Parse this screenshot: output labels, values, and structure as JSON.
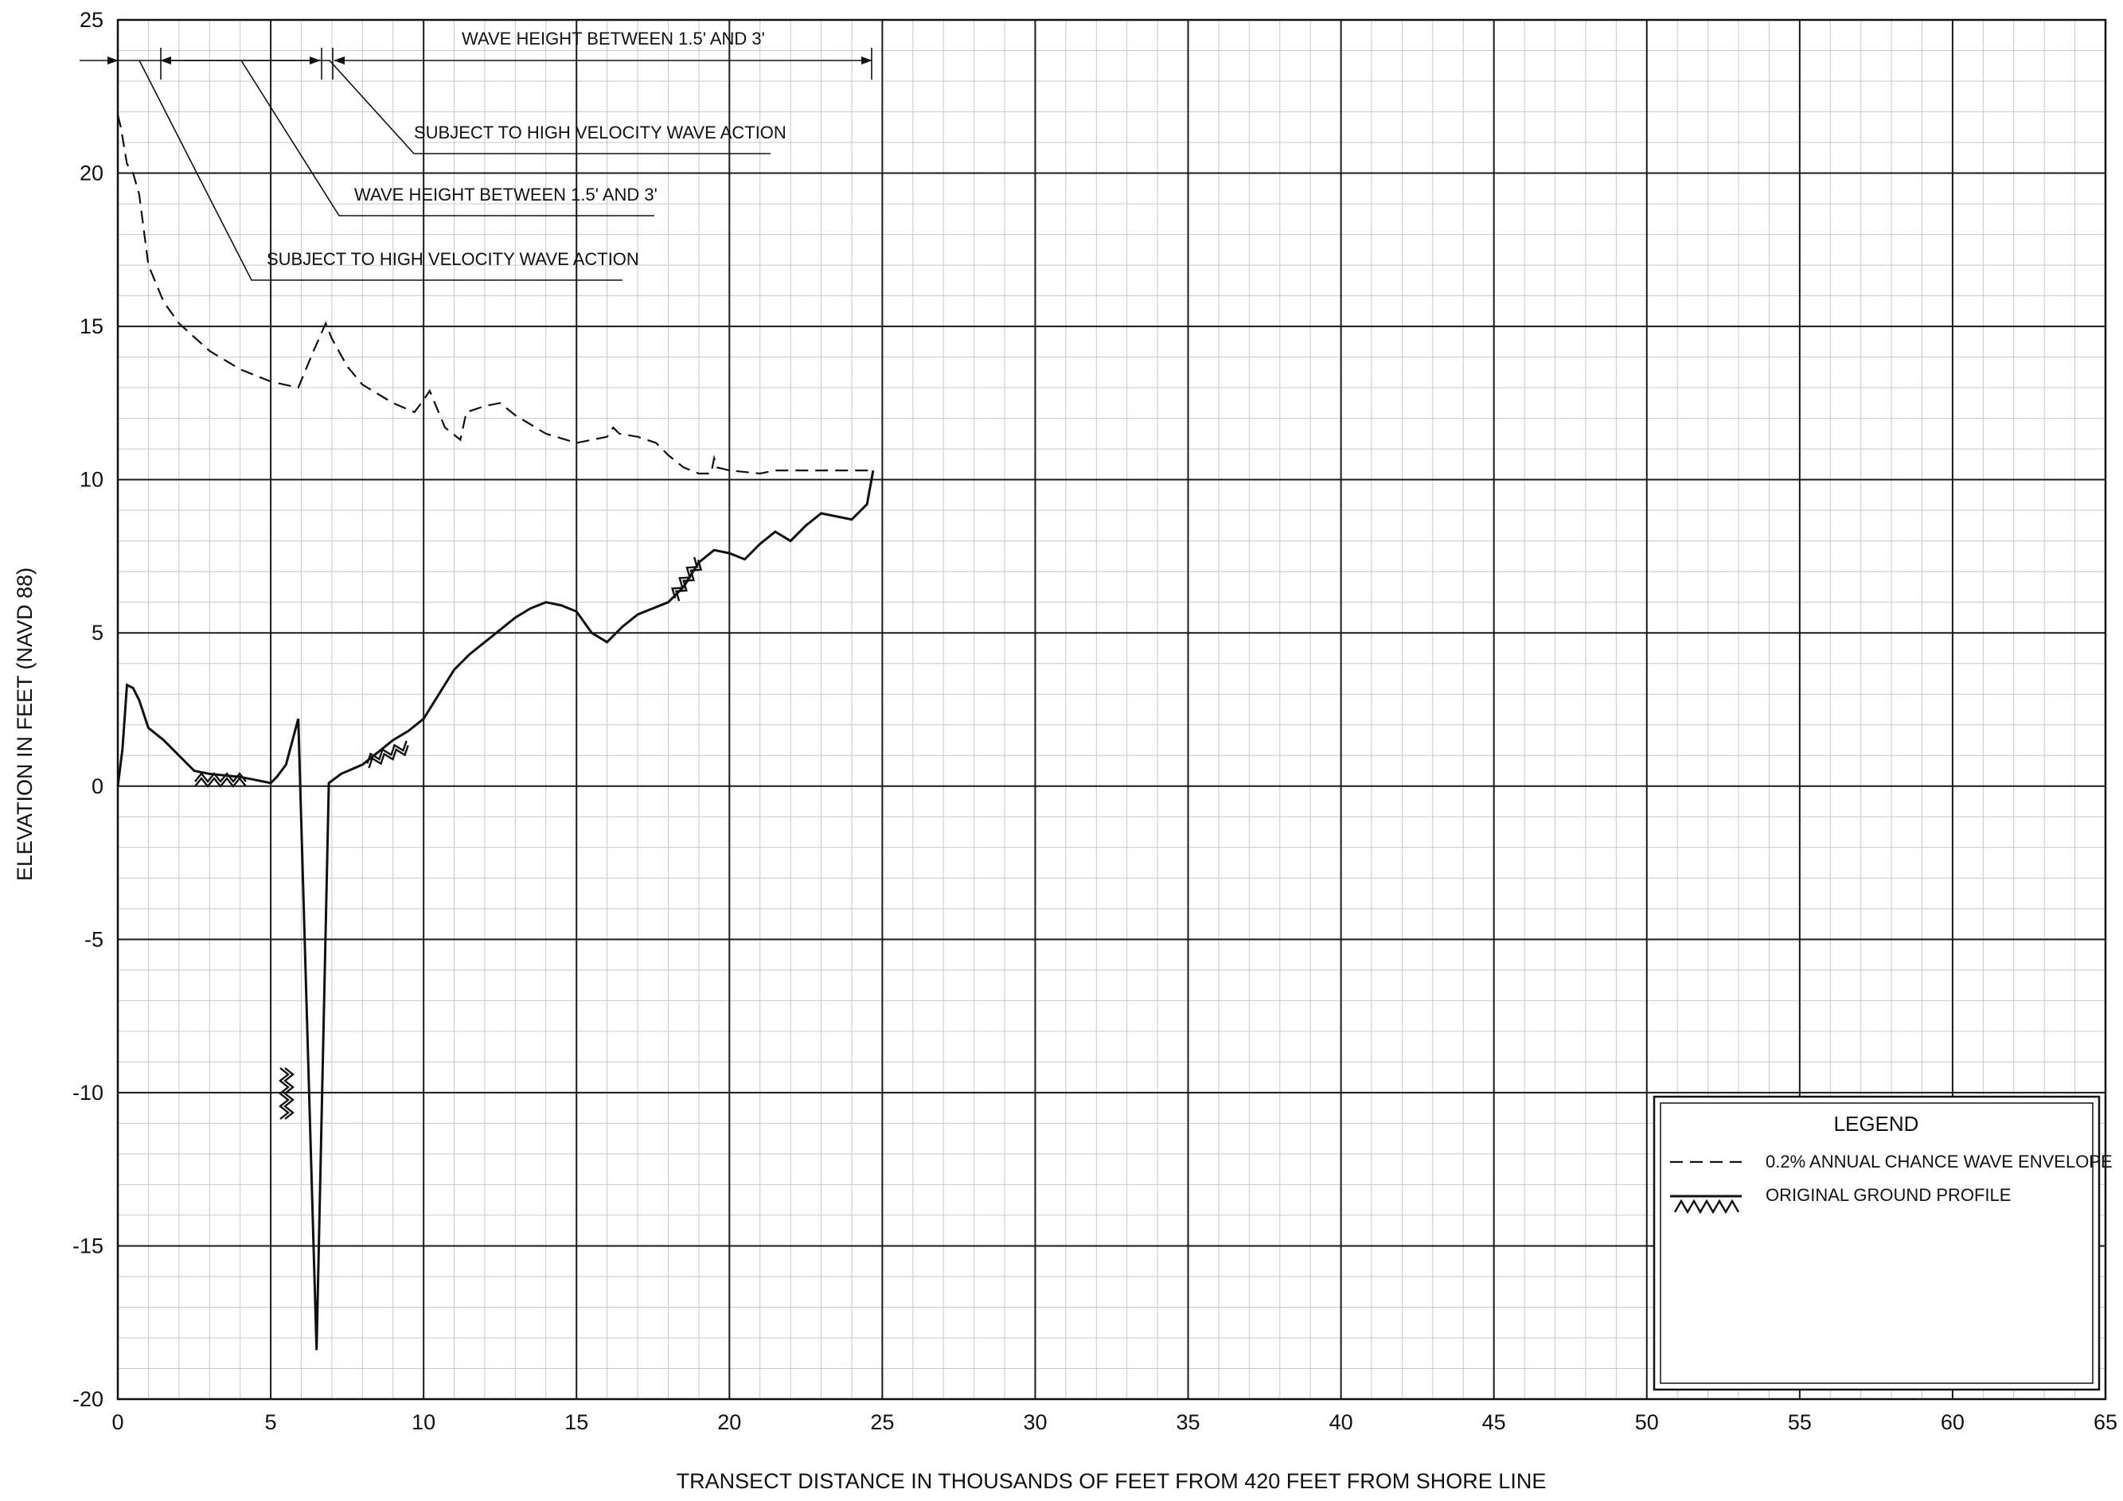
{
  "chart_data": {
    "type": "line",
    "xlabel": "TRANSECT DISTANCE IN THOUSANDS OF FEET FROM 420 FEET FROM SHORE LINE",
    "ylabel": "ELEVATION IN FEET (NAVD 88)",
    "xlim": [
      0,
      65
    ],
    "ylim": [
      -20,
      25
    ],
    "x_ticks": [
      "0",
      "5",
      "10",
      "15",
      "20",
      "25",
      "30",
      "35",
      "40",
      "45",
      "50",
      "55",
      "60",
      "65"
    ],
    "y_ticks": [
      "25",
      "20",
      "15",
      "10",
      "5",
      "0",
      "-5",
      "-10",
      "-15",
      "-20"
    ],
    "grid": {
      "major": true,
      "minor": true,
      "minor_step": 1
    },
    "annotations": [
      {
        "text": "WAVE HEIGHT BETWEEN 1.5' AND 3'",
        "x_from": 7.1,
        "x_to": 24.7
      },
      {
        "text": "SUBJECT TO HIGH VELOCITY WAVE ACTION",
        "x_from": 7.0,
        "x_to": 7.0
      },
      {
        "text": "WAVE HEIGHT BETWEEN 1.5' AND 3'",
        "x_from": 1.4,
        "x_to": 6.6
      },
      {
        "text": "SUBJECT TO HIGH VELOCITY WAVE ACTION",
        "x_from": 0,
        "x_to": 1.4
      }
    ],
    "legend": {
      "title": "LEGEND",
      "placement": "bottom-right",
      "entries": [
        "0.2% ANNUAL CHANCE WAVE ENVELOPE",
        "ORIGINAL GROUND PROFILE"
      ]
    },
    "series": [
      {
        "name": "0.2% ANNUAL CHANCE WAVE ENVELOPE",
        "style": "dashed",
        "x": [
          0,
          0.1,
          0.3,
          0.5,
          0.7,
          1.0,
          1.5,
          2.0,
          3.0,
          4.0,
          5.0,
          5.9,
          6.4,
          6.8,
          7.0,
          7.5,
          8.0,
          9.0,
          9.7,
          10.0,
          10.2,
          10.7,
          11.2,
          11.4,
          12.0,
          12.5,
          13.0,
          14.0,
          15.0,
          16.0,
          16.2,
          16.4,
          17.0,
          17.6,
          18.0,
          18.5,
          19.0,
          19.4,
          19.5,
          19.6,
          20.0,
          21.0,
          21.5,
          22.0,
          23.0,
          24.0,
          24.7
        ],
        "y": [
          21.9,
          21.5,
          20.3,
          20.0,
          19.3,
          17.0,
          15.8,
          15.1,
          14.2,
          13.6,
          13.2,
          13.0,
          14.2,
          15.1,
          14.6,
          13.7,
          13.1,
          12.5,
          12.2,
          12.6,
          12.9,
          11.7,
          11.3,
          12.2,
          12.4,
          12.5,
          12.1,
          11.5,
          11.2,
          11.4,
          11.7,
          11.5,
          11.4,
          11.2,
          10.8,
          10.4,
          10.2,
          10.2,
          10.7,
          10.4,
          10.3,
          10.2,
          10.3,
          10.3,
          10.3,
          10.3,
          10.3
        ],
        "color": "#111111"
      },
      {
        "name": "ORIGINAL GROUND PROFILE",
        "style": "solid",
        "x": [
          0,
          0.15,
          0.3,
          0.5,
          0.7,
          1.0,
          1.5,
          1.8,
          2.2,
          2.5,
          3.0,
          4.0,
          5.0,
          5.2,
          5.5,
          5.9,
          6.5,
          6.9,
          7.3,
          8.0,
          8.5,
          9.0,
          9.5,
          10.0,
          10.5,
          11.0,
          11.5,
          12.0,
          12.5,
          13.0,
          13.5,
          14.0,
          14.5,
          15.0,
          15.5,
          16.0,
          16.5,
          17.0,
          17.5,
          18.0,
          18.5,
          19.0,
          19.5,
          20.0,
          20.5,
          21.0,
          21.5,
          22.0,
          22.5,
          23.0,
          23.5,
          24.0,
          24.5,
          24.7
        ],
        "y": [
          0.0,
          1.2,
          3.3,
          3.2,
          2.8,
          1.9,
          1.5,
          1.2,
          0.8,
          0.5,
          0.4,
          0.3,
          0.1,
          0.3,
          0.7,
          2.2,
          -18.4,
          0.1,
          0.4,
          0.7,
          1.1,
          1.5,
          1.8,
          2.2,
          3.0,
          3.8,
          4.3,
          4.7,
          5.1,
          5.5,
          5.8,
          6.0,
          5.9,
          5.7,
          5.0,
          4.7,
          5.2,
          5.6,
          5.8,
          6.0,
          6.5,
          7.3,
          7.7,
          7.6,
          7.4,
          7.9,
          8.3,
          8.0,
          8.5,
          8.9,
          8.8,
          8.7,
          9.2,
          10.3
        ],
        "color": "#111111"
      }
    ]
  }
}
